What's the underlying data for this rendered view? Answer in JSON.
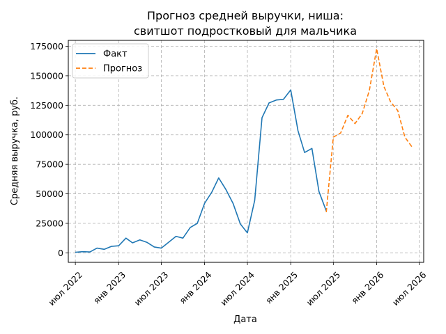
{
  "chart_data": {
    "type": "line",
    "title": [
      "Прогноз средней выручки, ниша:",
      "свитшот подростковый для мальчика"
    ],
    "xlabel": "Дата",
    "ylabel": "Средняя выручка, руб.",
    "ylim": [
      -8000,
      180000
    ],
    "xlim": [
      "2022-06-01",
      "2026-07-20"
    ],
    "grid": true,
    "legend_position": "top-left",
    "x_ticks": [
      {
        "date": "2022-07-01",
        "label": "июл 2022"
      },
      {
        "date": "2023-01-01",
        "label": "янв 2023"
      },
      {
        "date": "2023-07-01",
        "label": "июл 2023"
      },
      {
        "date": "2024-01-01",
        "label": "янв 2024"
      },
      {
        "date": "2024-07-01",
        "label": "июл 2024"
      },
      {
        "date": "2025-01-01",
        "label": "янв 2025"
      },
      {
        "date": "2025-07-01",
        "label": "июл 2025"
      },
      {
        "date": "2026-01-01",
        "label": "янв 2026"
      },
      {
        "date": "2026-07-01",
        "label": "июл 2026"
      }
    ],
    "y_ticks": [
      {
        "value": 0,
        "label": "0"
      },
      {
        "value": 25000,
        "label": "25000"
      },
      {
        "value": 50000,
        "label": "50000"
      },
      {
        "value": 75000,
        "label": "75000"
      },
      {
        "value": 100000,
        "label": "100000"
      },
      {
        "value": 125000,
        "label": "125000"
      },
      {
        "value": 150000,
        "label": "150000"
      },
      {
        "value": 175000,
        "label": "175000"
      }
    ],
    "series": [
      {
        "name": "Факт",
        "color": "#1f77b4",
        "style": "solid",
        "points": [
          {
            "x": "2022-07-01",
            "y": 500
          },
          {
            "x": "2022-08-01",
            "y": 1000
          },
          {
            "x": "2022-09-01",
            "y": 800
          },
          {
            "x": "2022-10-01",
            "y": 4000
          },
          {
            "x": "2022-11-01",
            "y": 3000
          },
          {
            "x": "2022-12-01",
            "y": 5500
          },
          {
            "x": "2023-01-01",
            "y": 6000
          },
          {
            "x": "2023-02-01",
            "y": 12500
          },
          {
            "x": "2023-03-01",
            "y": 8500
          },
          {
            "x": "2023-04-01",
            "y": 11000
          },
          {
            "x": "2023-05-01",
            "y": 9000
          },
          {
            "x": "2023-06-01",
            "y": 5000
          },
          {
            "x": "2023-07-01",
            "y": 4000
          },
          {
            "x": "2023-08-01",
            "y": 9000
          },
          {
            "x": "2023-09-01",
            "y": 14000
          },
          {
            "x": "2023-10-01",
            "y": 12500
          },
          {
            "x": "2023-11-01",
            "y": 21500
          },
          {
            "x": "2023-12-01",
            "y": 25000
          },
          {
            "x": "2024-01-01",
            "y": 42000
          },
          {
            "x": "2024-02-01",
            "y": 51500
          },
          {
            "x": "2024-03-01",
            "y": 63500
          },
          {
            "x": "2024-04-01",
            "y": 53500
          },
          {
            "x": "2024-05-01",
            "y": 42000
          },
          {
            "x": "2024-06-01",
            "y": 24500
          },
          {
            "x": "2024-07-01",
            "y": 17000
          },
          {
            "x": "2024-08-01",
            "y": 44500
          },
          {
            "x": "2024-09-01",
            "y": 114500
          },
          {
            "x": "2024-10-01",
            "y": 127000
          },
          {
            "x": "2024-11-01",
            "y": 129500
          },
          {
            "x": "2024-12-01",
            "y": 130000
          },
          {
            "x": "2025-01-01",
            "y": 138000
          },
          {
            "x": "2025-02-01",
            "y": 103500
          },
          {
            "x": "2025-03-01",
            "y": 85000
          },
          {
            "x": "2025-04-01",
            "y": 88500
          },
          {
            "x": "2025-05-01",
            "y": 52000
          },
          {
            "x": "2025-06-01",
            "y": 35500
          }
        ]
      },
      {
        "name": "Прогноз",
        "color": "#ff7f0e",
        "style": "dashed",
        "points": [
          {
            "x": "2025-06-01",
            "y": 34500
          },
          {
            "x": "2025-07-01",
            "y": 98000
          },
          {
            "x": "2025-08-01",
            "y": 101500
          },
          {
            "x": "2025-09-01",
            "y": 116500
          },
          {
            "x": "2025-10-01",
            "y": 109500
          },
          {
            "x": "2025-11-01",
            "y": 118000
          },
          {
            "x": "2025-12-01",
            "y": 137500
          },
          {
            "x": "2026-01-01",
            "y": 173000
          },
          {
            "x": "2026-02-01",
            "y": 141000
          },
          {
            "x": "2026-03-01",
            "y": 128000
          },
          {
            "x": "2026-04-01",
            "y": 120500
          },
          {
            "x": "2026-05-01",
            "y": 98000
          },
          {
            "x": "2026-06-01",
            "y": 89500
          }
        ]
      }
    ]
  }
}
